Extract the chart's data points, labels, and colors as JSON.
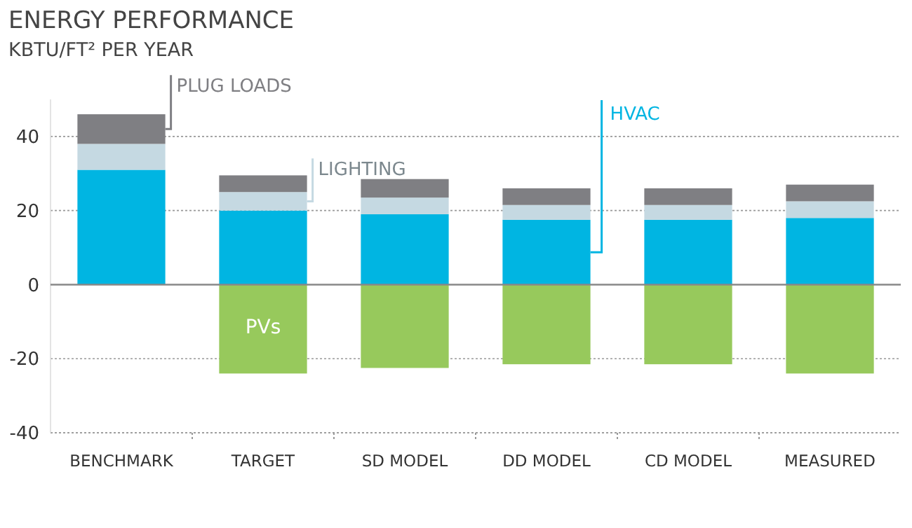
{
  "chart_data": {
    "type": "bar",
    "stacked": true,
    "title": "ENERGY PERFORMANCE",
    "subtitle": "KBTU/FT² PER YEAR",
    "categories": [
      "BENCHMARK",
      "TARGET",
      "SD MODEL",
      "DD MODEL",
      "CD MODEL",
      "MEASURED"
    ],
    "series": [
      {
        "name": "HVAC",
        "color": "#00b5e2",
        "values": [
          31,
          20,
          19,
          17.5,
          17.5,
          18
        ]
      },
      {
        "name": "LIGHTING",
        "color": "#c5d9e2",
        "values": [
          7,
          5,
          4.5,
          4,
          4,
          4.5
        ]
      },
      {
        "name": "PLUG LOADS",
        "color": "#7f7f83",
        "values": [
          8,
          4.5,
          5,
          4.5,
          4.5,
          4.5
        ]
      },
      {
        "name": "PVs",
        "color": "#97c95c",
        "values": [
          null,
          -24,
          -22.5,
          -21.5,
          -21.5,
          -24
        ]
      }
    ],
    "ylim": [
      -40,
      50
    ],
    "yticks": [
      -40,
      -20,
      0,
      20,
      40
    ],
    "grid": "y"
  }
}
